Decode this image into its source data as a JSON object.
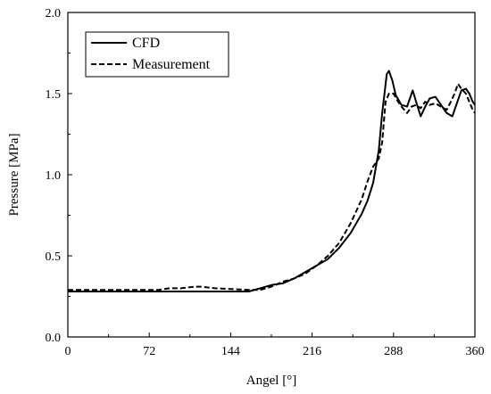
{
  "chart_data": {
    "type": "line",
    "xlabel": "Angel [°]",
    "ylabel": "Pressure [MPa]",
    "xlim": [
      0,
      360
    ],
    "ylim": [
      0.0,
      2.0
    ],
    "x_ticks": [
      "0",
      "72",
      "144",
      "216",
      "288",
      "360"
    ],
    "y_ticks": [
      "0.0",
      "0.5",
      "1.0",
      "1.5",
      "2.0"
    ],
    "grid": false,
    "legend_position": "top-left",
    "series": [
      {
        "name": "CFD",
        "line_style": "solid",
        "color": "#000000",
        "x": [
          0,
          100,
          160,
          170,
          180,
          190,
          200,
          210,
          220,
          230,
          240,
          250,
          260,
          265,
          270,
          275,
          278,
          280,
          282,
          284,
          287,
          290,
          295,
          300,
          305,
          308,
          312,
          316,
          320,
          325,
          330,
          335,
          340,
          345,
          348,
          352,
          355,
          358,
          360
        ],
        "y": [
          0.28,
          0.28,
          0.28,
          0.3,
          0.32,
          0.33,
          0.36,
          0.4,
          0.44,
          0.48,
          0.55,
          0.64,
          0.76,
          0.84,
          0.95,
          1.15,
          1.38,
          1.5,
          1.62,
          1.64,
          1.58,
          1.49,
          1.43,
          1.42,
          1.52,
          1.45,
          1.36,
          1.42,
          1.47,
          1.48,
          1.43,
          1.38,
          1.36,
          1.46,
          1.52,
          1.53,
          1.5,
          1.45,
          1.43
        ]
      },
      {
        "name": "Measurement",
        "line_style": "dashed",
        "color": "#000000",
        "x": [
          0,
          80,
          90,
          100,
          112,
          118,
          130,
          160,
          170,
          180,
          190,
          200,
          210,
          220,
          230,
          240,
          250,
          260,
          265,
          270,
          275,
          278,
          281,
          284,
          288,
          292,
          295,
          300,
          304,
          308,
          312,
          316,
          320,
          325,
          330,
          335,
          338,
          342,
          345,
          348,
          352,
          355,
          358,
          360
        ],
        "y": [
          0.29,
          0.29,
          0.3,
          0.3,
          0.31,
          0.31,
          0.3,
          0.29,
          0.29,
          0.31,
          0.34,
          0.36,
          0.39,
          0.44,
          0.5,
          0.58,
          0.7,
          0.85,
          0.96,
          1.05,
          1.1,
          1.2,
          1.45,
          1.5,
          1.5,
          1.45,
          1.42,
          1.38,
          1.42,
          1.43,
          1.41,
          1.45,
          1.43,
          1.44,
          1.42,
          1.4,
          1.44,
          1.5,
          1.56,
          1.53,
          1.5,
          1.45,
          1.4,
          1.38
        ]
      }
    ]
  }
}
